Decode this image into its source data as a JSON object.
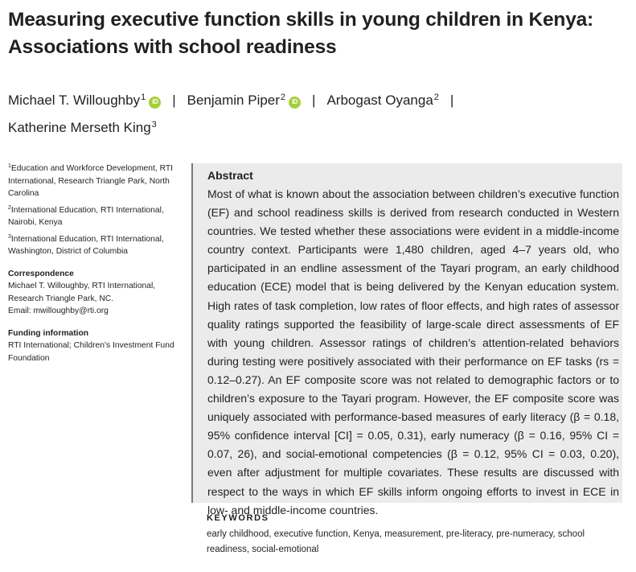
{
  "title": "Measuring executive function skills in young children in Kenya: Associations with school readiness",
  "authors": [
    {
      "name": "Michael T. Willoughby",
      "sup": "1",
      "orcid": "iD"
    },
    {
      "name": "Benjamin Piper",
      "sup": "2",
      "orcid": "iD"
    },
    {
      "name": "Arbogast Oyanga",
      "sup": "2"
    },
    {
      "name": "Katherine Merseth King",
      "sup": "3"
    }
  ],
  "separator": "|",
  "affiliations": [
    {
      "sup": "1",
      "text": "Education and Workforce Development, RTI International, Research Triangle Park, North Carolina"
    },
    {
      "sup": "2",
      "text": "International Education, RTI International, Nairobi, Kenya"
    },
    {
      "sup": "3",
      "text": "International Education, RTI International, Washington, District of Columbia"
    }
  ],
  "correspondence": {
    "heading": "Correspondence",
    "text": "Michael T. Willoughby, RTI International, Research Triangle Park, NC.",
    "email": "Email: mwilloughby@rti.org"
  },
  "funding": {
    "heading": "Funding information",
    "text": "RTI International; Children's Investment Fund Foundation"
  },
  "abstract": {
    "heading": "Abstract",
    "text": "Most of what is known about the association between children’s executive function (EF) and school readiness skills is derived from research conducted in Western countries. We tested whether these associations were evident in a middle-income country context. Participants were 1,480 children, aged 4–7 years old, who participated in an endline assessment of the Tayari program, an early childhood education (ECE) model that is being delivered by the Kenyan education system. High rates of task completion, low rates of floor effects, and high rates of assessor quality ratings supported the feasibility of large-scale direct assessments of EF with young children. Assessor ratings of children’s attention-related behaviors during testing were positively associated with their performance on EF tasks (rs = 0.12–0.27). An EF composite score was not related to demographic factors or to children’s exposure to the Tayari program. However, the EF composite score was uniquely associated with performance-based measures of early literacy (β = 0.18, 95% confidence interval [CI] = 0.05, 0.31), early numeracy (β = 0.16, 95% CI = 0.07, 26), and social-emotional competencies (β = 0.12, 95% CI = 0.03, 0.20), even after adjustment for multiple covariates. These results are discussed with respect to the ways in which EF skills inform ongoing efforts to invest in ECE in low- and middle-income countries."
  },
  "keywords": {
    "heading": "KEYWORDS",
    "text": "early childhood, executive function, Kenya, measurement, pre-literacy, pre-numeracy, school readiness, social-emotional"
  },
  "colors": {
    "orcid": "#a6ce39",
    "abstract_bg": "#ebebeb",
    "abstract_rule": "#7a7a7a",
    "text": "#231f20"
  }
}
